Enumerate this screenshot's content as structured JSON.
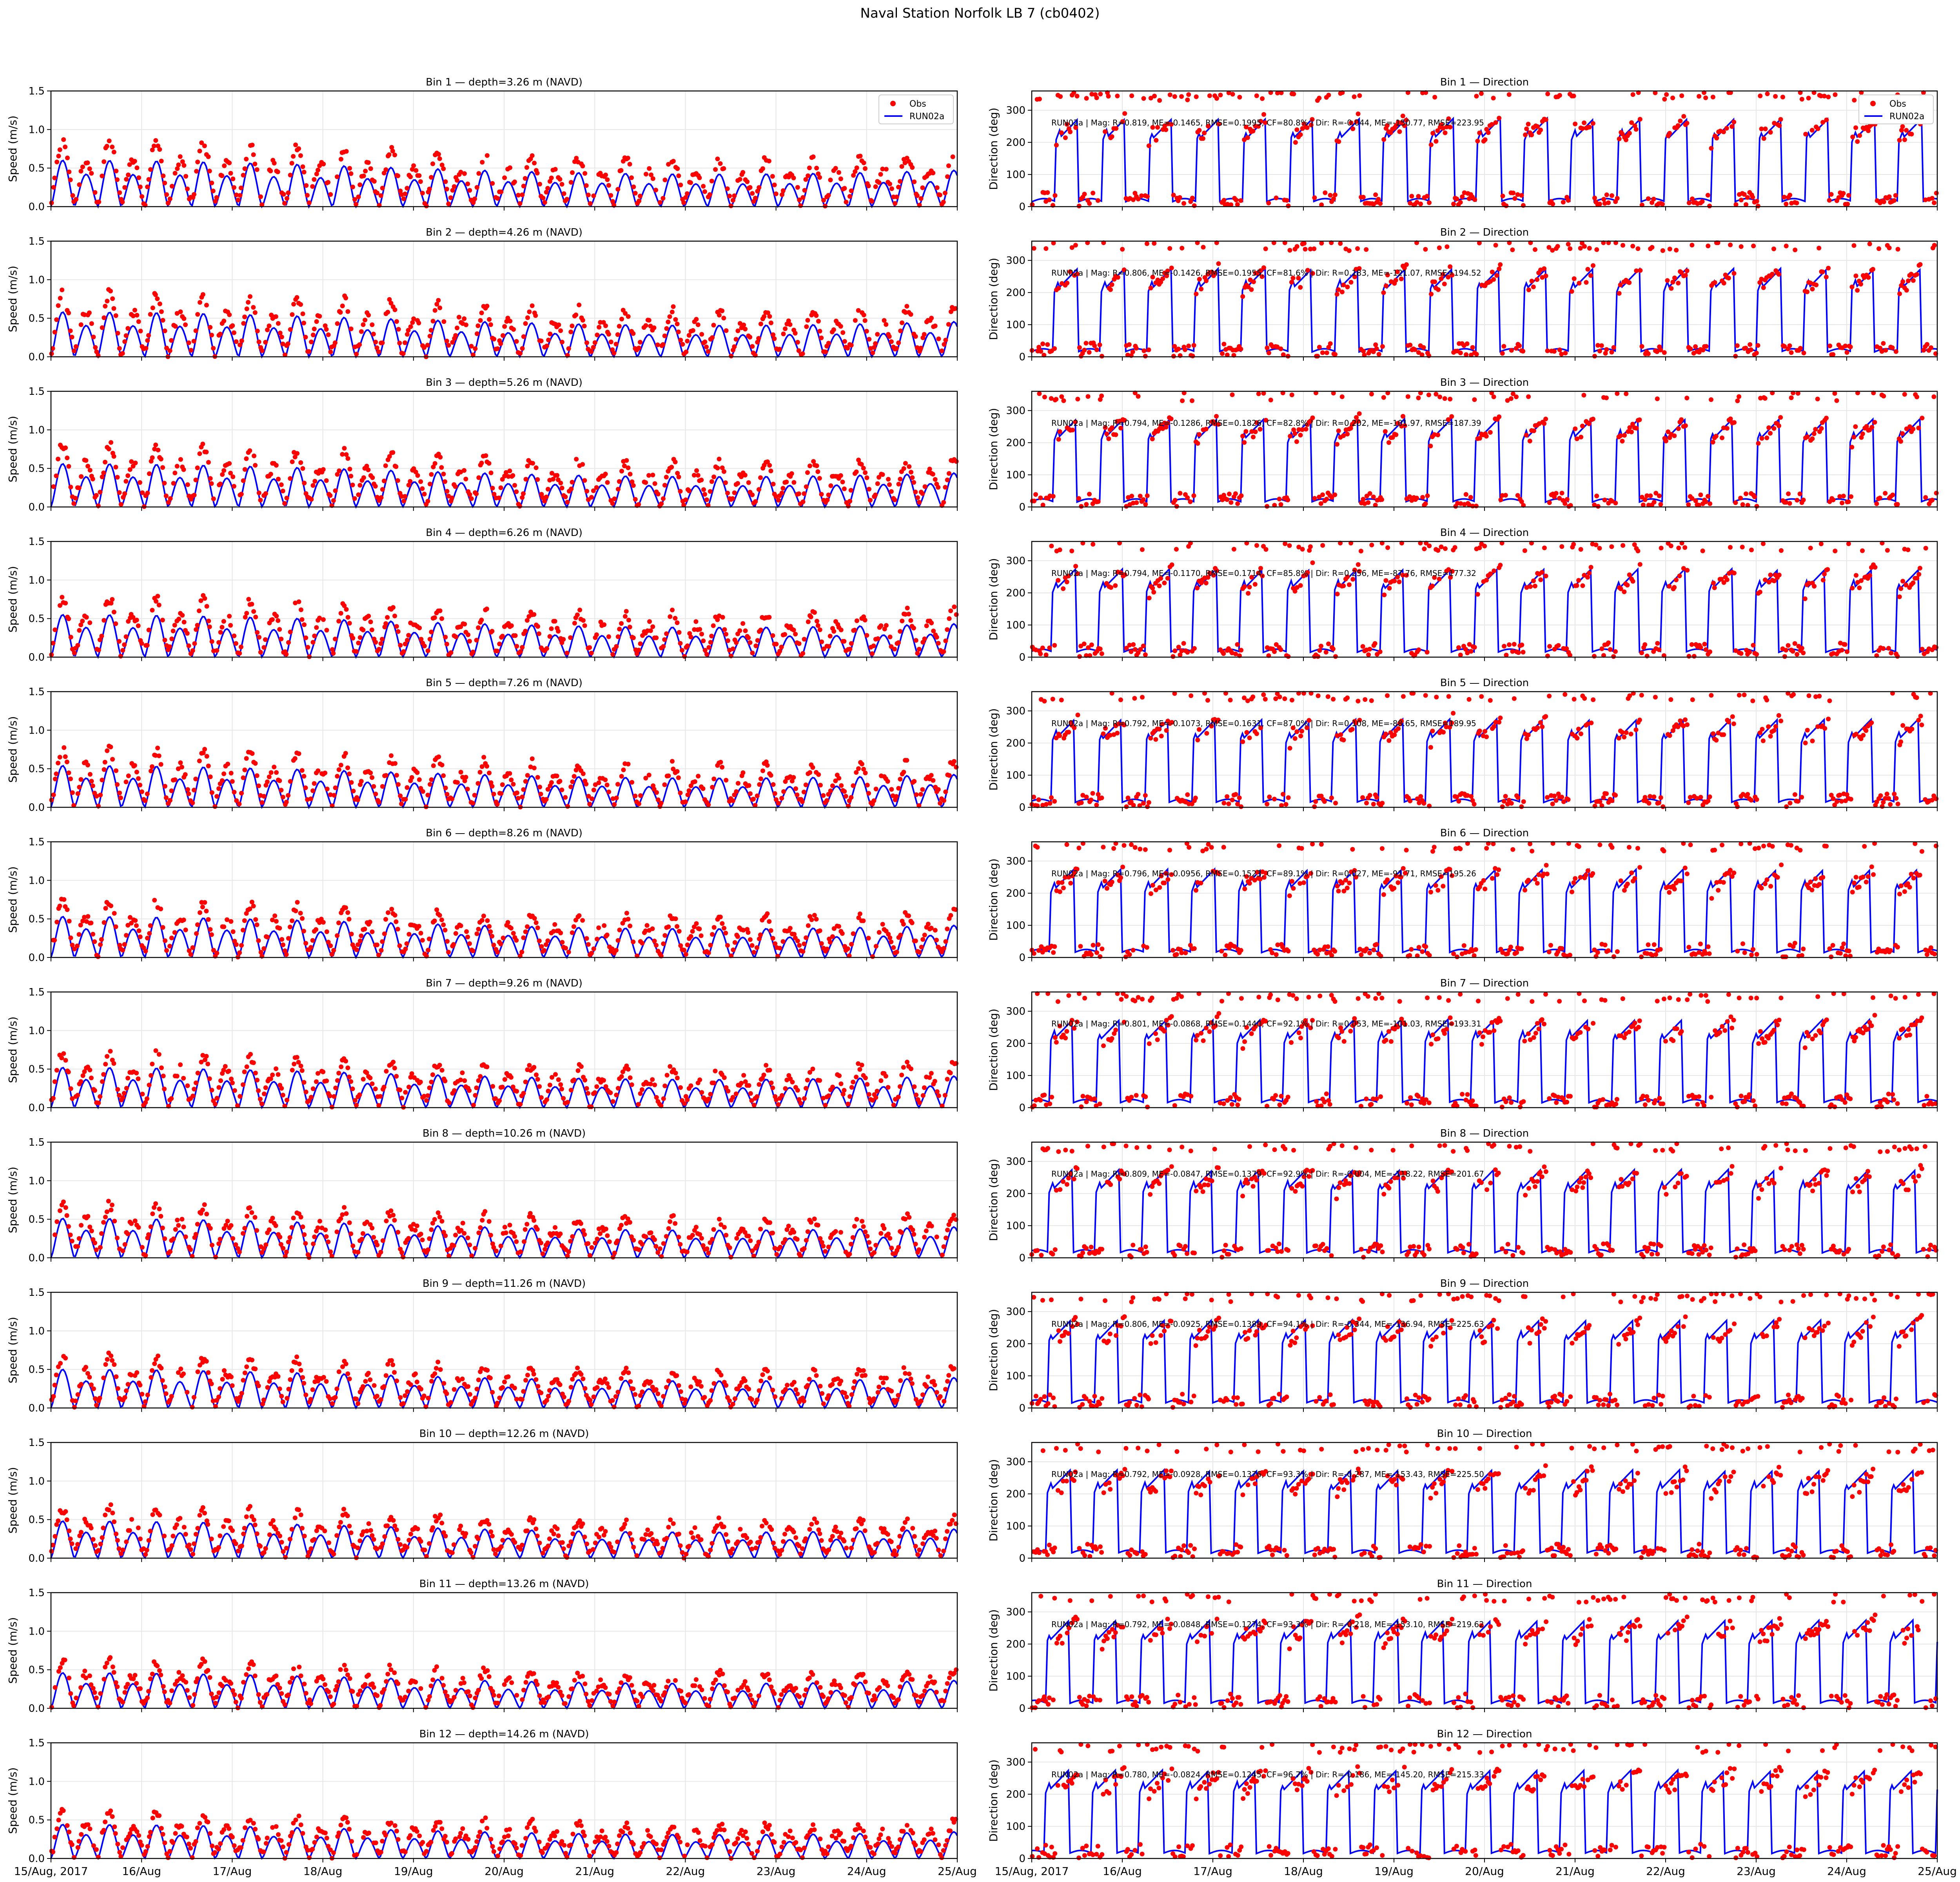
{
  "figure": {
    "title": "Naval Station Norfolk LB 7 (cb0402)"
  },
  "colors": {
    "obs": "#ff0000",
    "model": "#0000ff",
    "grid": "#e6e6e6",
    "axis": "#000000"
  },
  "axes_common": {
    "speed_ylabel": "Speed (m/s)",
    "direction_ylabel": "Direction (deg)",
    "speed_yticks": [
      "0.0",
      "0.5",
      "1.0",
      "1.5"
    ],
    "direction_yticks": [
      "0",
      "100",
      "200",
      "300"
    ],
    "xticks": [
      "15/Aug, 2017",
      "16/Aug",
      "17/Aug",
      "18/Aug",
      "19/Aug",
      "20/Aug",
      "21/Aug",
      "22/Aug",
      "23/Aug",
      "24/Aug",
      "25/Aug"
    ],
    "legend": [
      "Obs",
      "RUN02a"
    ]
  },
  "chart_data": {
    "type": "line",
    "x_range": [
      "2017-08-15",
      "2017-08-25"
    ],
    "speed_ylim": [
      0,
      1.5
    ],
    "direction_ylim": [
      0,
      360
    ],
    "grid": true,
    "legend_placement": "top-right",
    "series": [
      {
        "name": "Obs",
        "style": "scatter",
        "color": "#ff0000"
      },
      {
        "name": "RUN02a",
        "style": "line",
        "color": "#0000ff"
      }
    ],
    "bins": [
      {
        "bin": 1,
        "speed_title": "Bin 1 — depth=3.26 m (NAVD)",
        "direction_title": "Bin 1 — Direction",
        "stats": "RUN02a | Mag: R=0.819, ME=-0.1465, RMSE=0.1995, CF=80.8% | Dir: R=-0.044, ME=-150.77, RMSE=223.95",
        "model_peak": 0.6,
        "obs_peak": 0.8
      },
      {
        "bin": 2,
        "speed_title": "Bin 2 — depth=4.26 m (NAVD)",
        "direction_title": "Bin 2 — Direction",
        "stats": "RUN02a | Mag: R=0.806, ME=-0.1426, RMSE=0.1955, CF=81.6% | Dir: R=0.183, ME=-121.07, RMSE=194.52",
        "model_peak": 0.58,
        "obs_peak": 0.78
      },
      {
        "bin": 3,
        "speed_title": "Bin 3 — depth=5.26 m (NAVD)",
        "direction_title": "Bin 3 — Direction",
        "stats": "RUN02a | Mag: R=0.794, ME=-0.1286, RMSE=0.1826, CF=82.8% | Dir: R=0.202, ME=-101.97, RMSE=187.39",
        "model_peak": 0.56,
        "obs_peak": 0.75
      },
      {
        "bin": 4,
        "speed_title": "Bin 4 — depth=6.26 m (NAVD)",
        "direction_title": "Bin 4 — Direction",
        "stats": "RUN02a | Mag: R=0.794, ME=-0.1170, RMSE=0.1714, CF=85.8% | Dir: R=0.256, ME=-87.76, RMSE=177.32",
        "model_peak": 0.55,
        "obs_peak": 0.72
      },
      {
        "bin": 5,
        "speed_title": "Bin 5 — depth=7.26 m (NAVD)",
        "direction_title": "Bin 5 — Direction",
        "stats": "RUN02a | Mag: R=0.792, ME=-0.1073, RMSE=0.1631, CF=87.0% | Dir: R=0.108, ME=-88.65, RMSE=189.95",
        "model_peak": 0.54,
        "obs_peak": 0.7
      },
      {
        "bin": 6,
        "speed_title": "Bin 6 — depth=8.26 m (NAVD)",
        "direction_title": "Bin 6 — Direction",
        "stats": "RUN02a | Mag: R=0.796, ME=-0.0956, RMSE=0.1523, CF=89.1% | Dir: R=0.027, ME=-91.71, RMSE=195.26",
        "model_peak": 0.53,
        "obs_peak": 0.68
      },
      {
        "bin": 7,
        "speed_title": "Bin 7 — depth=9.26 m (NAVD)",
        "direction_title": "Bin 7 — Direction",
        "stats": "RUN02a | Mag: R=0.801, ME=-0.0868, RMSE=0.1440, CF=92.1% | Dir: R=0.053, ME=-101.03, RMSE=193.31",
        "model_peak": 0.52,
        "obs_peak": 0.66
      },
      {
        "bin": 8,
        "speed_title": "Bin 8 — depth=10.26 m (NAVD)",
        "direction_title": "Bin 8 — Direction",
        "stats": "RUN02a | Mag: R=0.809, ME=-0.0847, RMSE=0.1379, CF=92.9% | Dir: R=-0.004, ME=-118.22, RMSE=201.67",
        "model_peak": 0.51,
        "obs_peak": 0.64
      },
      {
        "bin": 9,
        "speed_title": "Bin 9 — depth=11.26 m (NAVD)",
        "direction_title": "Bin 9 — Direction",
        "stats": "RUN02a | Mag: R=0.806, ME=-0.0925, RMSE=0.1389, CF=94.1% | Dir: R=-0.344, ME=-136.94, RMSE=225.63",
        "model_peak": 0.5,
        "obs_peak": 0.62
      },
      {
        "bin": 10,
        "speed_title": "Bin 10 — depth=12.26 m (NAVD)",
        "direction_title": "Bin 10 — Direction",
        "stats": "RUN02a | Mag: R=0.792, ME=-0.0928, RMSE=0.1376, CF=93.3% | Dir: R=-0.287, ME=-153.43, RMSE=225.50",
        "model_peak": 0.48,
        "obs_peak": 0.6
      },
      {
        "bin": 11,
        "speed_title": "Bin 11 — depth=13.26 m (NAVD)",
        "direction_title": "Bin 11 — Direction",
        "stats": "RUN02a | Mag: R=0.792, ME=-0.0848, RMSE=0.1274, CF=93.3% | Dir: R=-0.218, ME=-153.10, RMSE=219.62",
        "model_peak": 0.46,
        "obs_peak": 0.56
      },
      {
        "bin": 12,
        "speed_title": "Bin 12 — depth=14.26 m (NAVD)",
        "direction_title": "Bin 12 — Direction",
        "stats": "RUN02a | Mag: R=0.780, ME=-0.0824, RMSE=0.1245, CF=96.7% | Dir: R=-0.186, ME=-145.20, RMSE=215.33",
        "model_peak": 0.44,
        "obs_peak": 0.54
      }
    ]
  }
}
